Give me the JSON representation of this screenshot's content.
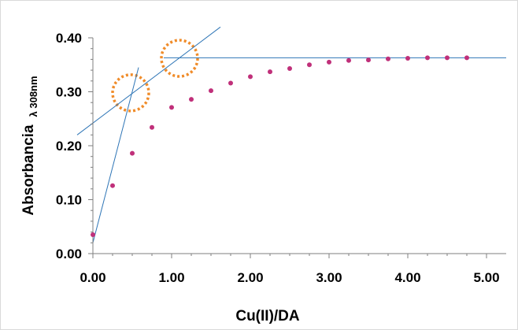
{
  "chart_data": {
    "type": "scatter",
    "title": "",
    "xlabel": "Cu(II)/DA",
    "ylabel": "Absorbancia",
    "ylabel_subscript": "λ 308nm",
    "xlim": [
      0,
      5.25
    ],
    "ylim": [
      0,
      0.4
    ],
    "xticks": [
      "0.00",
      "1.00",
      "2.00",
      "3.00",
      "4.00",
      "5.00"
    ],
    "yticks": [
      "0.00",
      "0.10",
      "0.20",
      "0.30",
      "0.40"
    ],
    "grid": false,
    "legend": "none",
    "marker_color": "#c0307a",
    "line_color": "#2e75b6",
    "highlight_color": "#f08c2a",
    "points": [
      {
        "x": 0.0,
        "y": 0.035
      },
      {
        "x": 0.25,
        "y": 0.126
      },
      {
        "x": 0.5,
        "y": 0.186
      },
      {
        "x": 0.75,
        "y": 0.234
      },
      {
        "x": 1.0,
        "y": 0.271
      },
      {
        "x": 1.25,
        "y": 0.286
      },
      {
        "x": 1.5,
        "y": 0.302
      },
      {
        "x": 1.75,
        "y": 0.316
      },
      {
        "x": 2.0,
        "y": 0.328
      },
      {
        "x": 2.25,
        "y": 0.337
      },
      {
        "x": 2.5,
        "y": 0.343
      },
      {
        "x": 2.75,
        "y": 0.35
      },
      {
        "x": 3.0,
        "y": 0.355
      },
      {
        "x": 3.25,
        "y": 0.358
      },
      {
        "x": 3.5,
        "y": 0.359
      },
      {
        "x": 3.75,
        "y": 0.361
      },
      {
        "x": 4.0,
        "y": 0.362
      },
      {
        "x": 4.25,
        "y": 0.363
      },
      {
        "x": 4.5,
        "y": 0.363
      },
      {
        "x": 4.75,
        "y": 0.363
      }
    ],
    "trend_lines": [
      {
        "x1": 0.0,
        "y1": 0.02,
        "x2": 0.58,
        "y2": 0.345
      },
      {
        "x1": -0.2,
        "y1": 0.22,
        "x2": 1.62,
        "y2": 0.42
      },
      {
        "x1": 0.9,
        "y1": 0.363,
        "x2": 5.25,
        "y2": 0.363
      }
    ],
    "highlights": [
      {
        "x": 0.48,
        "y": 0.298
      },
      {
        "x": 1.1,
        "y": 0.362
      }
    ]
  }
}
